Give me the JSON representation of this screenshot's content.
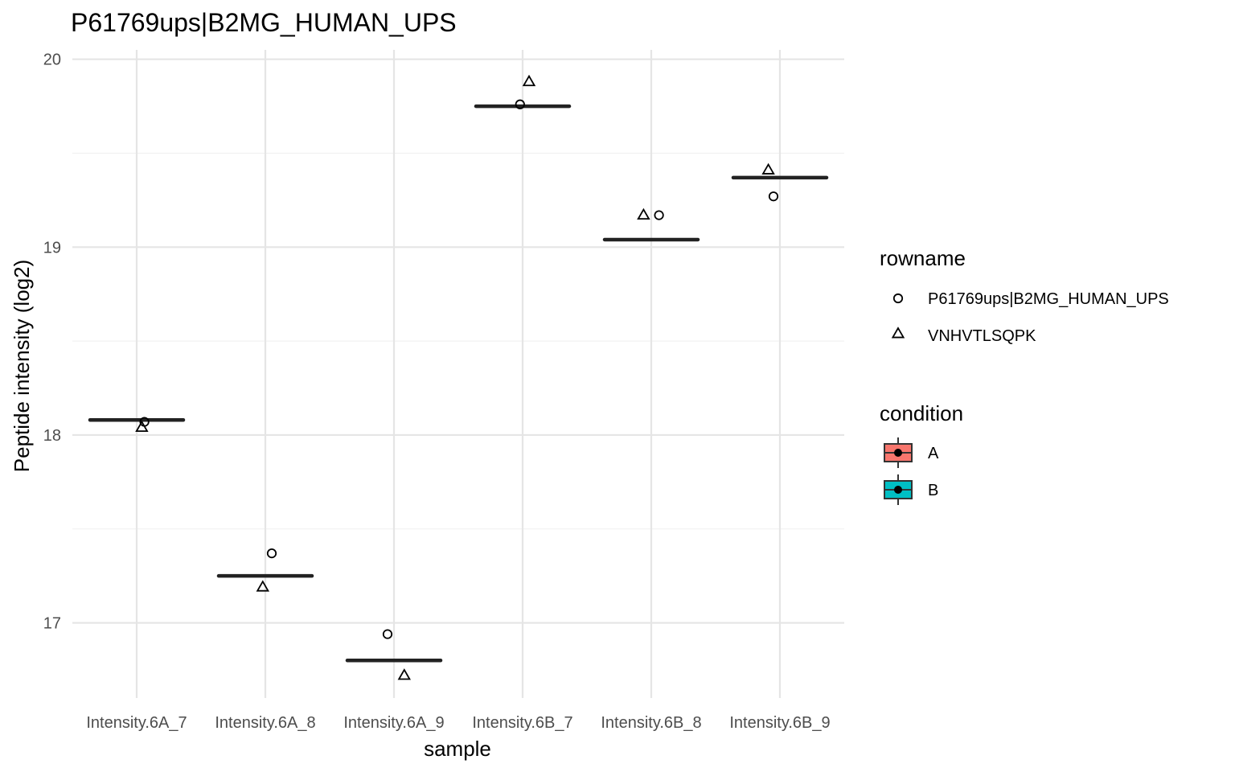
{
  "chart_data": {
    "type": "scatter",
    "title": "P61769ups|B2MG_HUMAN_UPS",
    "xlabel": "sample",
    "ylabel": "Peptide intensity (log2)",
    "categories": [
      "Intensity.6A_7",
      "Intensity.6A_8",
      "Intensity.6A_9",
      "Intensity.6B_7",
      "Intensity.6B_8",
      "Intensity.6B_9"
    ],
    "ylim": [
      16.6,
      20.05
    ],
    "y_ticks": [
      17,
      18,
      19,
      20
    ],
    "grid": true,
    "medians": [
      18.08,
      17.25,
      16.8,
      19.75,
      19.04,
      19.37
    ],
    "median_condition": [
      "A",
      "A",
      "A",
      "B",
      "B",
      "B"
    ],
    "series": [
      {
        "name": "P61769ups|B2MG_HUMAN_UPS",
        "shape": "circle",
        "values": [
          18.07,
          17.37,
          16.94,
          19.76,
          19.17,
          19.27
        ],
        "jitter": [
          0.06,
          0.05,
          -0.05,
          -0.02,
          0.06,
          -0.05
        ]
      },
      {
        "name": "VNHVTLSQPK",
        "shape": "triangle",
        "values": [
          18.04,
          17.19,
          16.72,
          19.88,
          19.17,
          19.41
        ],
        "jitter": [
          0.04,
          -0.02,
          0.08,
          0.05,
          -0.06,
          -0.09
        ]
      }
    ],
    "legend": {
      "position": "right",
      "rowname": {
        "title": "rowname",
        "items": [
          {
            "label": "P61769ups|B2MG_HUMAN_UPS",
            "shape": "circle"
          },
          {
            "label": "VNHVTLSQPK",
            "shape": "triangle"
          }
        ]
      },
      "condition": {
        "title": "condition",
        "items": [
          {
            "label": "A",
            "color": "#F8766D"
          },
          {
            "label": "B",
            "color": "#00BFC4"
          }
        ]
      }
    }
  }
}
